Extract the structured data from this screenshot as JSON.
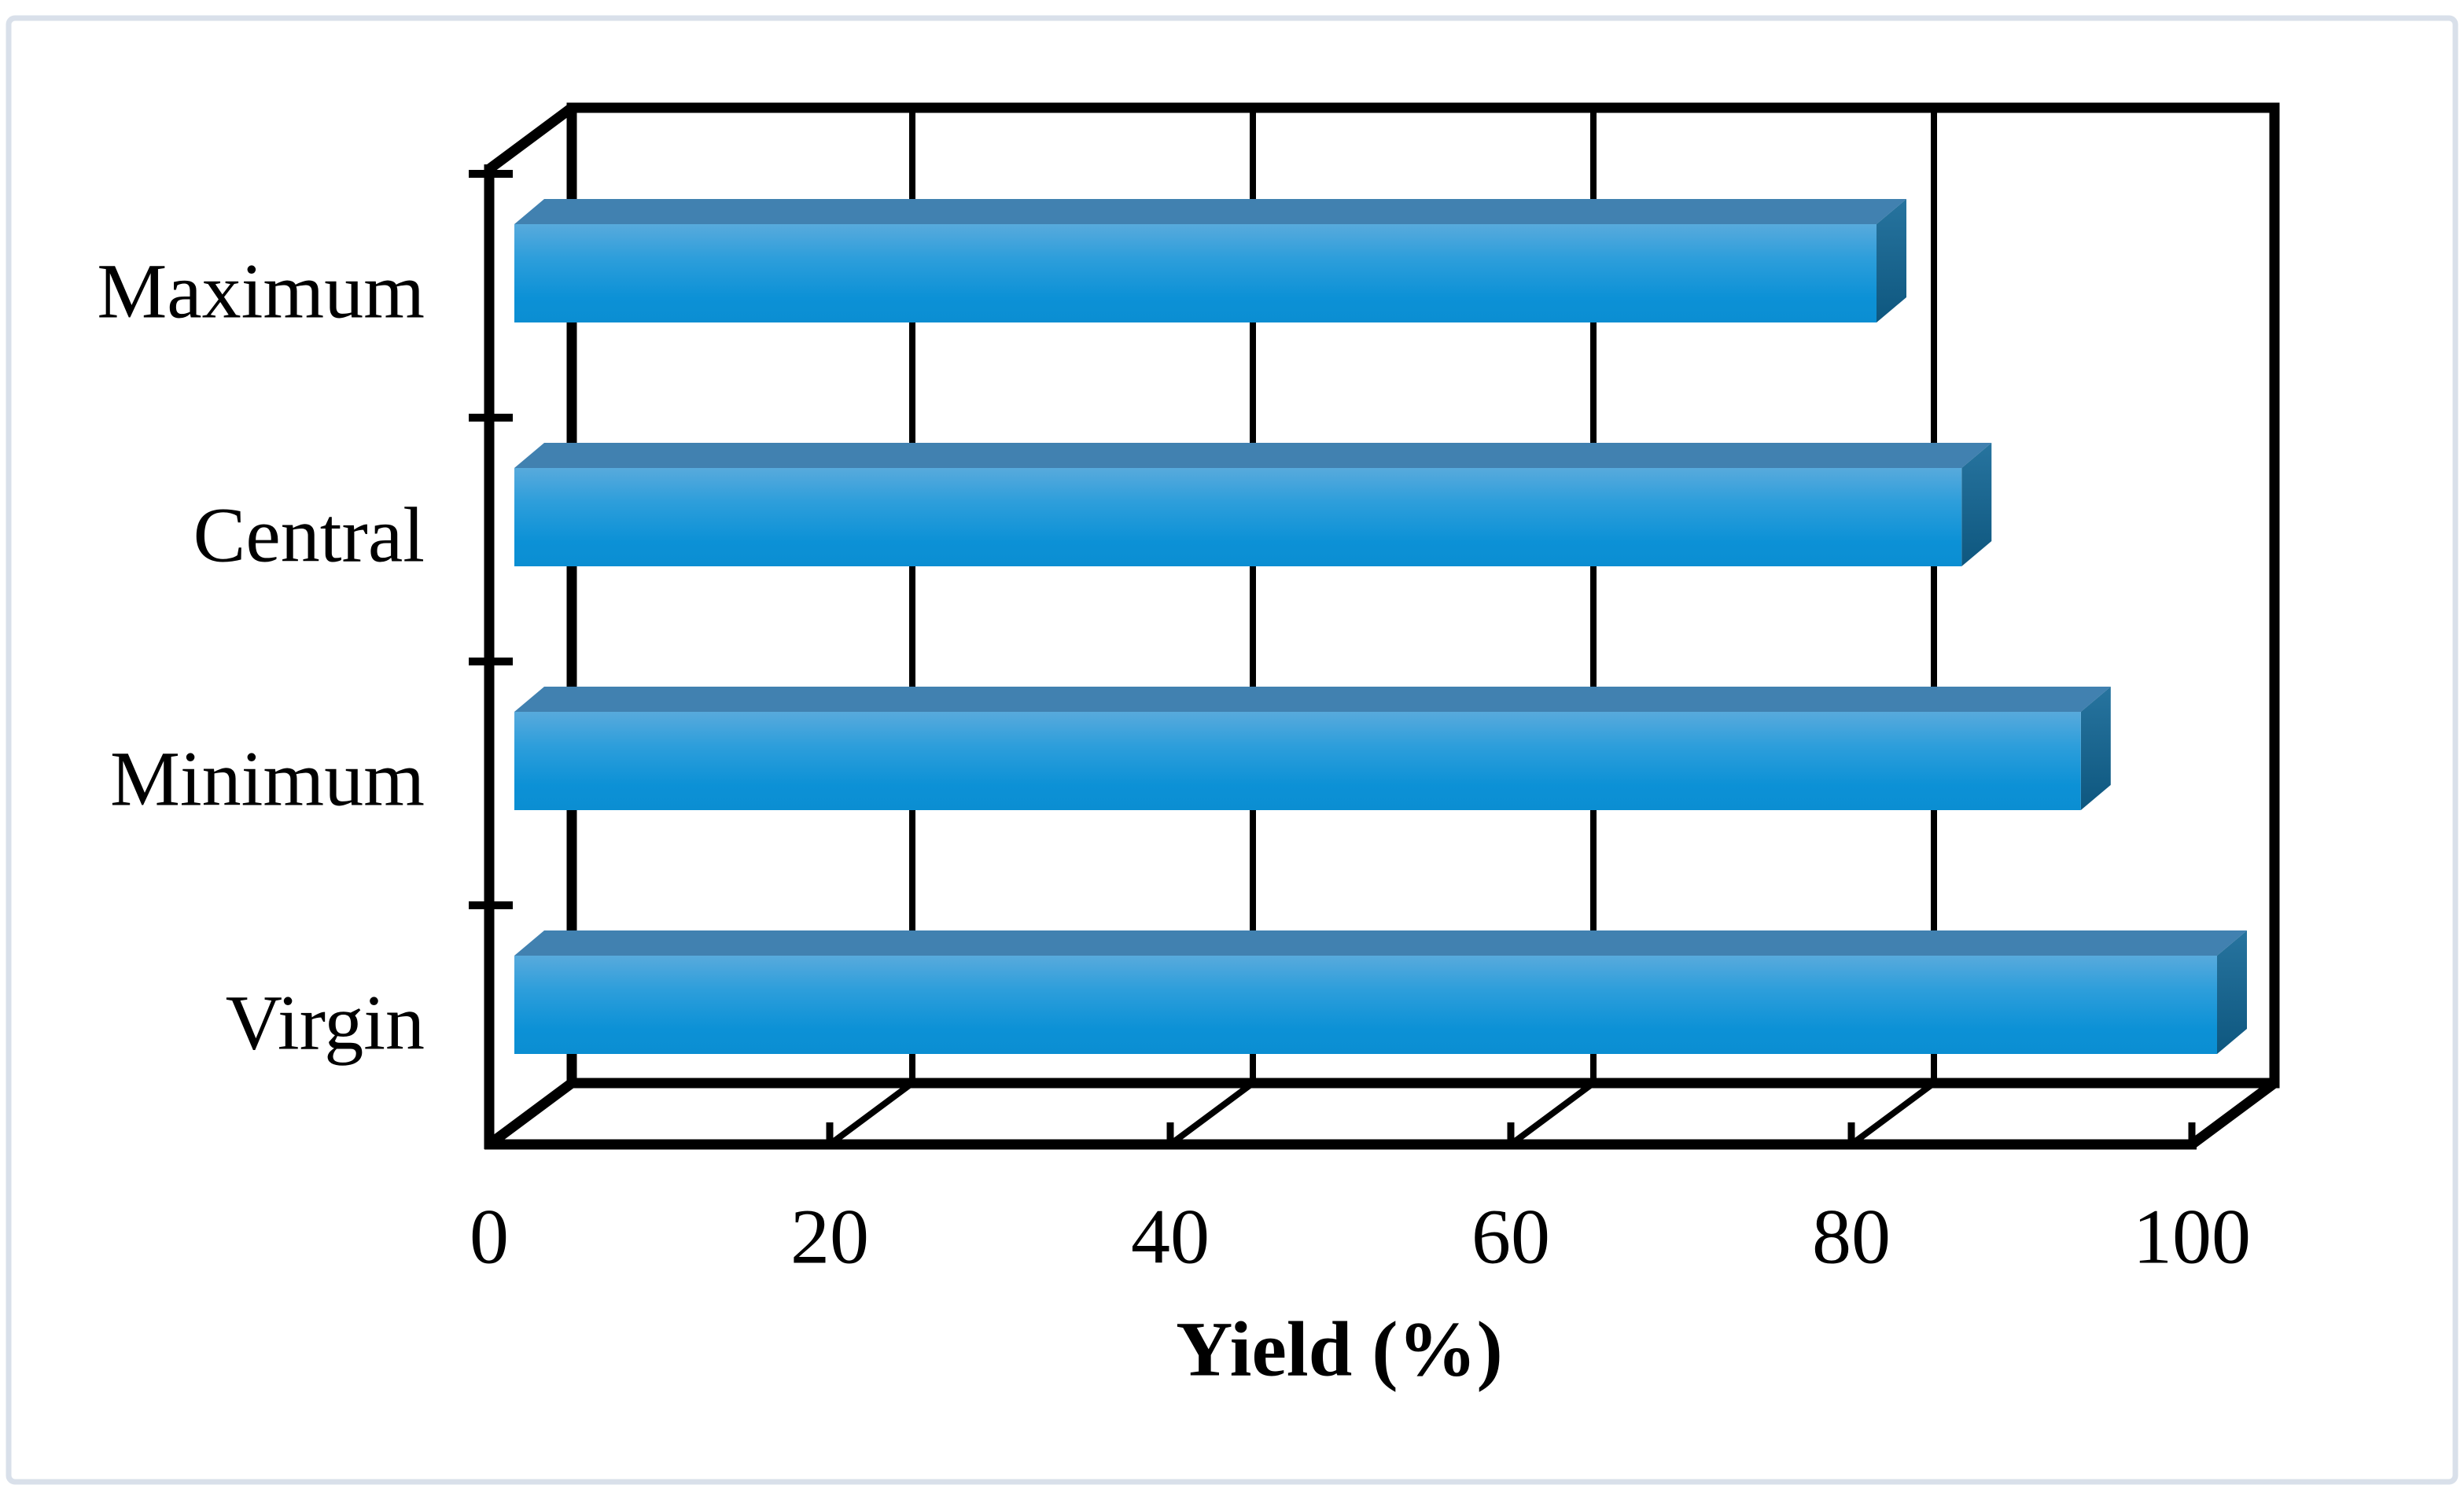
{
  "figure": {
    "background": "#ffffff",
    "border_color": "#d9e0ea"
  },
  "chart_data": {
    "type": "bar",
    "orientation": "horizontal",
    "style": "3d-oblique",
    "categories": [
      "Maximum",
      "Central",
      "Minimum",
      "Virgin"
    ],
    "values": [
      80,
      85,
      92,
      100
    ],
    "title": "",
    "xlabel": "Yield (%)",
    "ylabel": "",
    "xlim": [
      0,
      100
    ],
    "xticks": [
      0,
      20,
      40,
      60,
      80,
      100
    ],
    "grid": "vertical-back-wall-and-floor",
    "legend_position": "none",
    "colors": {
      "bar_front_top": "#58aadc",
      "bar_front_mid": "#2d9edb",
      "bar_front_low": "#0c91d6",
      "bar_front_bottom": "#0b8ed2",
      "bar_top_face": "#4181b0",
      "bar_side_top": "#27749f",
      "bar_side_bottom": "#0e577f",
      "axis": "#000000",
      "text": "#000000"
    }
  }
}
